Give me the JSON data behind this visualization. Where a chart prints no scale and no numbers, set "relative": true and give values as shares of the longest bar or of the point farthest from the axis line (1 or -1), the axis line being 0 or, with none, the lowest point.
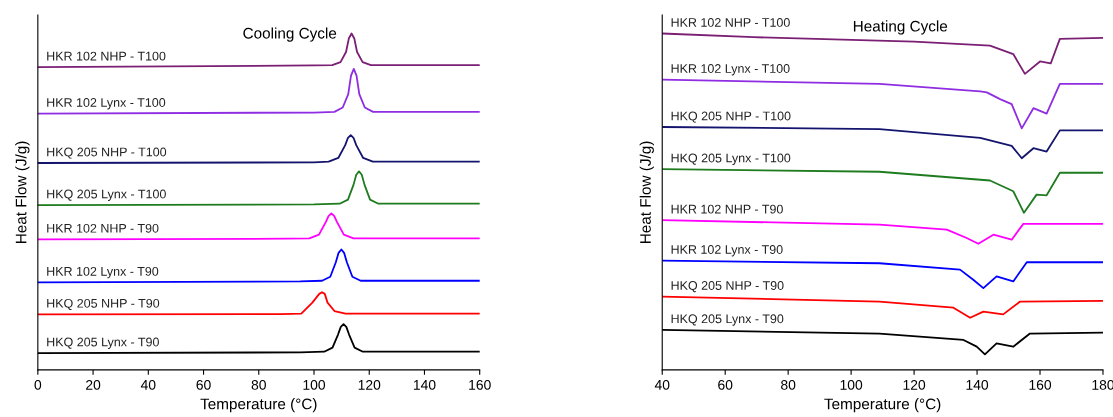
{
  "chart_data": [
    {
      "type": "line",
      "title": "Cooling Cycle",
      "xlabel": "Temperature (°C)",
      "ylabel": "Heat Flow (J/g)",
      "relative": true,
      "xlim": [
        0,
        160
      ],
      "xticks": [
        0,
        20,
        40,
        60,
        80,
        100,
        120,
        140,
        160
      ],
      "grid": false,
      "legend": false,
      "tick_labels": "x",
      "series": [
        {
          "name": "HKR 102 NHP - T100",
          "color": "#7b1f74",
          "x": [
            0,
            100,
            106.6,
            109.6,
            111.6,
            112.6,
            113.6,
            114.6,
            115.6,
            117.6,
            120.6,
            160
          ],
          "values": [
            0.9,
            0.905,
            0.906,
            0.915,
            0.945,
            0.985,
            1.0,
            0.985,
            0.945,
            0.915,
            0.906,
            0.906
          ]
        },
        {
          "name": "HKR 102 Lynx - T100",
          "color": "#8e2de2",
          "x": [
            0,
            100,
            107.4,
            110.4,
            112.4,
            113.4,
            114.4,
            115.4,
            116.4,
            118.4,
            121.4,
            160
          ],
          "values": [
            0.762,
            0.765,
            0.767,
            0.78,
            0.82,
            0.875,
            0.895,
            0.875,
            0.82,
            0.78,
            0.767,
            0.767
          ]
        },
        {
          "name": "HKQ 205 NHP - T100",
          "color": "#14146e",
          "x": [
            0,
            100,
            105.3,
            108.8,
            111.3,
            112.3,
            113.3,
            114.3,
            115.3,
            117.8,
            121.3,
            160
          ],
          "values": [
            0.615,
            0.617,
            0.619,
            0.63,
            0.668,
            0.69,
            0.698,
            0.69,
            0.668,
            0.63,
            0.619,
            0.619
          ]
        },
        {
          "name": "HKQ 205 Lynx - T100",
          "color": "#1e7b1e",
          "x": [
            0,
            100,
            109.3,
            112.3,
            114.3,
            115.3,
            116.3,
            117.3,
            118.3,
            120.3,
            123.3,
            160
          ],
          "values": [
            0.49,
            0.492,
            0.494,
            0.506,
            0.55,
            0.58,
            0.59,
            0.58,
            0.55,
            0.506,
            0.494,
            0.494
          ]
        },
        {
          "name": "HKR 102 NHP - T90",
          "color": "#ff00ff",
          "x": [
            0,
            90,
            98.3,
            101.8,
            104.3,
            105.3,
            106.3,
            107.3,
            108.3,
            110.8,
            114.3,
            160
          ],
          "values": [
            0.388,
            0.39,
            0.391,
            0.402,
            0.44,
            0.458,
            0.465,
            0.458,
            0.44,
            0.402,
            0.391,
            0.391
          ]
        },
        {
          "name": "HKR 102 Lynx - T90",
          "color": "#0000ff",
          "x": [
            0,
            95,
            102.9,
            105.9,
            107.9,
            108.9,
            109.9,
            110.9,
            111.9,
            113.9,
            116.9,
            160
          ],
          "values": [
            0.26,
            0.263,
            0.265,
            0.277,
            0.32,
            0.348,
            0.358,
            0.348,
            0.32,
            0.277,
            0.265,
            0.265
          ]
        },
        {
          "name": "HKQ 205 NHP - T90",
          "color": "#ff0000",
          "x": [
            0,
            88,
            95.4,
            99.4,
            101.9,
            102.9,
            103.9,
            104.9,
            107.4,
            111.4,
            160
          ],
          "values": [
            0.165,
            0.166,
            0.167,
            0.2,
            0.226,
            0.231,
            0.226,
            0.2,
            0.175,
            0.167,
            0.167
          ]
        },
        {
          "name": "HKQ 205 Lynx - T90",
          "color": "#000000",
          "x": [
            0,
            95,
            103.7,
            106.7,
            108.7,
            109.7,
            110.7,
            111.7,
            112.7,
            114.7,
            117.7,
            160
          ],
          "values": [
            0.05,
            0.052,
            0.054,
            0.066,
            0.105,
            0.128,
            0.136,
            0.128,
            0.105,
            0.066,
            0.054,
            0.054
          ]
        }
      ]
    },
    {
      "type": "line",
      "title": "Heating Cycle",
      "xlabel": "Temperature (°C)",
      "ylabel": "Heat Flow (J/g)",
      "relative": true,
      "xlim": [
        40,
        180
      ],
      "xticks": [
        40,
        60,
        80,
        100,
        120,
        140,
        160,
        180
      ],
      "grid": false,
      "legend": false,
      "tick_labels": "x",
      "series": [
        {
          "name": "HKR 102 NHP - T100",
          "color": "#7b1f74",
          "x": [
            40,
            69,
            120,
            144.1,
            151.5,
            155.2,
            160,
            163.4,
            166.3,
            180
          ],
          "values": [
            1.0,
            0.989,
            0.976,
            0.964,
            0.939,
            0.88,
            0.917,
            0.911,
            0.984,
            0.987
          ]
        },
        {
          "name": "HKR 102 Lynx - T100",
          "color": "#8e2de2",
          "x": [
            40,
            109,
            141,
            143.1,
            147.3,
            151,
            154.2,
            157.9,
            162.1,
            166.3,
            180
          ],
          "values": [
            0.863,
            0.85,
            0.828,
            0.825,
            0.805,
            0.79,
            0.718,
            0.778,
            0.762,
            0.85,
            0.85
          ]
        },
        {
          "name": "HKQ 205 NHP - T100",
          "color": "#14146e",
          "x": [
            40,
            109,
            141,
            151,
            154.2,
            157.9,
            162.1,
            166.3,
            180
          ],
          "values": [
            0.722,
            0.716,
            0.69,
            0.666,
            0.629,
            0.659,
            0.649,
            0.712,
            0.712
          ]
        },
        {
          "name": "HKQ 205 Lynx - T100",
          "color": "#1e7b1e",
          "x": [
            40,
            109,
            144.1,
            151.5,
            154.9,
            158.9,
            162.1,
            166.3,
            180
          ],
          "values": [
            0.597,
            0.589,
            0.563,
            0.531,
            0.467,
            0.521,
            0.519,
            0.586,
            0.586
          ]
        },
        {
          "name": "HKR 102 NHP - T90",
          "color": "#ff00ff",
          "x": [
            40,
            109,
            130.4,
            136.7,
            140.4,
            145.2,
            151,
            154.7,
            180
          ],
          "values": [
            0.445,
            0.432,
            0.417,
            0.392,
            0.375,
            0.402,
            0.387,
            0.434,
            0.434
          ]
        },
        {
          "name": "HKR 102 Lynx - T90",
          "color": "#0000ff",
          "x": [
            40,
            109,
            134.6,
            138.8,
            142,
            146.2,
            151.5,
            155.8,
            180
          ],
          "values": [
            0.325,
            0.317,
            0.298,
            0.268,
            0.243,
            0.278,
            0.263,
            0.32,
            0.32
          ]
        },
        {
          "name": "HKQ 205 NHP - T90",
          "color": "#ff0000",
          "x": [
            40,
            109,
            132.5,
            137.8,
            142,
            148.3,
            153.7,
            180
          ],
          "values": [
            0.218,
            0.203,
            0.185,
            0.155,
            0.173,
            0.165,
            0.203,
            0.205
          ]
        },
        {
          "name": "HKQ 205 Lynx - T90",
          "color": "#000000",
          "x": [
            40,
            109,
            135.7,
            139.9,
            142.5,
            146.2,
            151.5,
            156.8,
            180
          ],
          "values": [
            0.119,
            0.108,
            0.089,
            0.069,
            0.046,
            0.079,
            0.069,
            0.108,
            0.111
          ]
        }
      ]
    }
  ]
}
